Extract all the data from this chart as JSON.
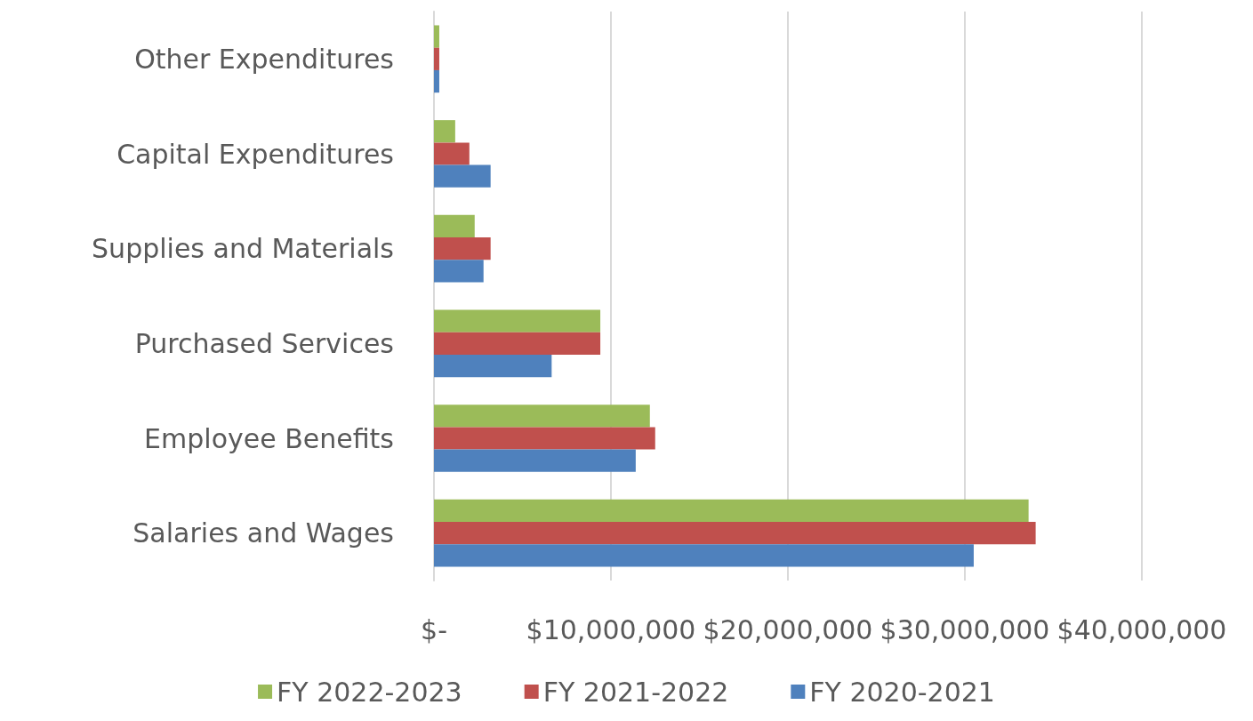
{
  "chart_data": {
    "type": "bar",
    "orientation": "horizontal",
    "categories": [
      "Other Expenditures",
      "Capital Expenditures",
      "Supplies and Materials",
      "Purchased Services",
      "Employee Benefits",
      "Salaries and Wages"
    ],
    "series": [
      {
        "name": "FY 2022-2023",
        "color": "#9bbb59",
        "values": [
          300000,
          1200000,
          2300000,
          9400000,
          12200000,
          33600000
        ]
      },
      {
        "name": "FY 2021-2022",
        "color": "#c0504d",
        "values": [
          300000,
          2000000,
          3200000,
          9400000,
          12500000,
          34000000
        ]
      },
      {
        "name": "FY 2020-2021",
        "color": "#4f81bd",
        "values": [
          300000,
          3200000,
          2800000,
          6650000,
          11400000,
          30500000
        ]
      }
    ],
    "xlim": [
      0,
      40000000
    ],
    "xticks": [
      {
        "value": 0,
        "label": "$-"
      },
      {
        "value": 10000000,
        "label": "$10,000,000"
      },
      {
        "value": 20000000,
        "label": "$20,000,000"
      },
      {
        "value": 30000000,
        "label": "$30,000,000"
      },
      {
        "value": 40000000,
        "label": "$40,000,000"
      }
    ],
    "grid": "x",
    "legend": "bottom"
  }
}
